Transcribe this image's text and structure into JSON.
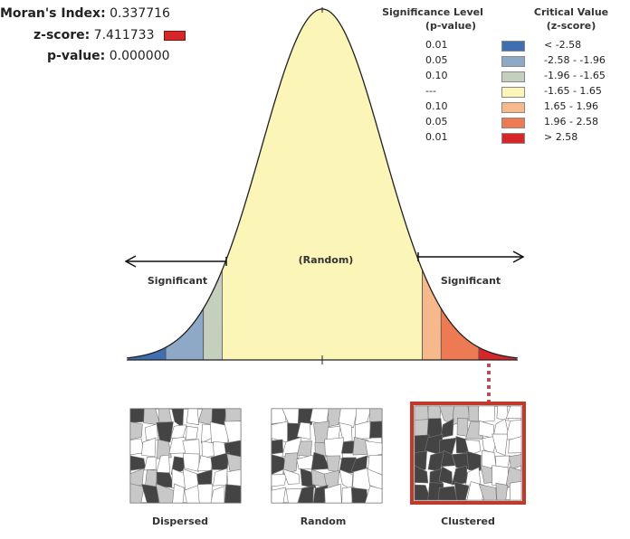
{
  "stats": {
    "moran_label": "Moran's Index:",
    "moran_value": "0.337716",
    "z_label": "z-score:",
    "z_value": "7.411733",
    "p_label": "p-value:",
    "p_value": "0.000000",
    "z_color": "#d7262a"
  },
  "legend": {
    "sig_header_1": "Significance Level",
    "sig_header_2": "(p-value)",
    "crit_header_1": "Critical Value",
    "crit_header_2": "(z-score)",
    "rows": [
      {
        "p": "0.01",
        "range": "< -2.58",
        "color": "#3f6fb0"
      },
      {
        "p": "0.05",
        "range": "-2.58 - -1.96",
        "color": "#8ea8c8"
      },
      {
        "p": "0.10",
        "range": "-1.96 - -1.65",
        "color": "#c5cfbd"
      },
      {
        "p": "---",
        "range": "-1.65 - 1.65",
        "color": "#fbf5b8"
      },
      {
        "p": "0.10",
        "range": "1.65 - 1.96",
        "color": "#f7b98c"
      },
      {
        "p": "0.05",
        "range": "1.96 - 2.58",
        "color": "#ee7a54"
      },
      {
        "p": "0.01",
        "range": "> 2.58",
        "color": "#d7262a"
      }
    ]
  },
  "curve": {
    "random_label": "(Random)",
    "left_label": "Significant",
    "right_label": "Significant"
  },
  "patterns": [
    {
      "label": "Dispersed",
      "highlighted": false
    },
    {
      "label": "Random",
      "highlighted": false
    },
    {
      "label": "Clustered",
      "highlighted": true
    }
  ],
  "highlight_color": "#c0392b"
}
